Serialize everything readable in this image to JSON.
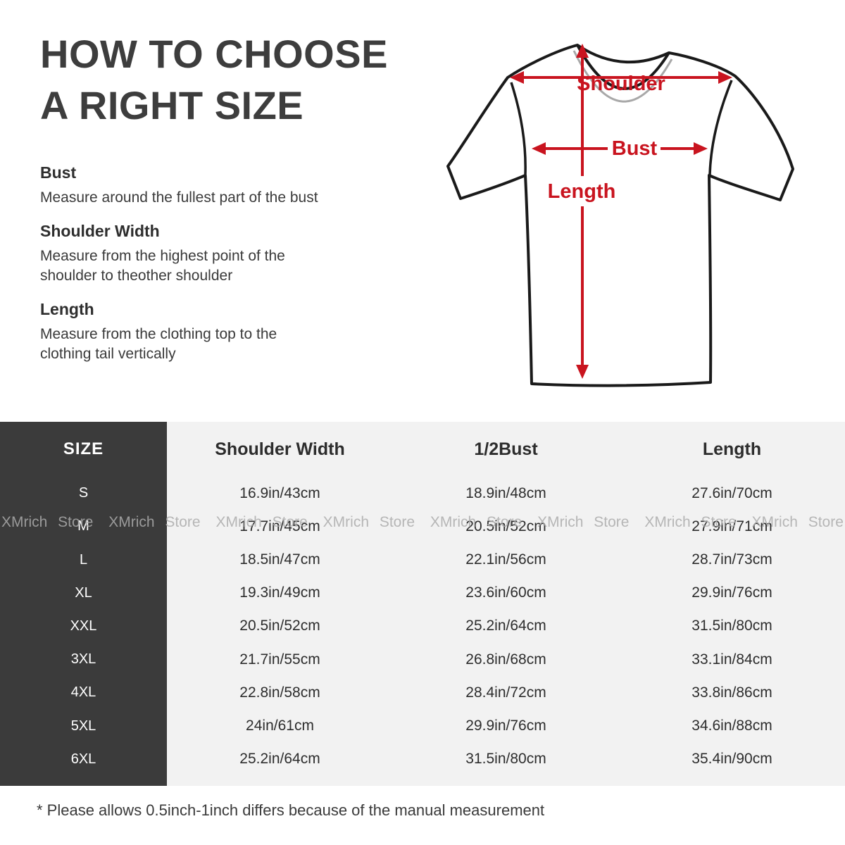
{
  "title": "HOW TO CHOOSE\nA RIGHT SIZE",
  "instructions": [
    {
      "heading": "Bust",
      "body": "Measure around the fullest part of the bust"
    },
    {
      "heading": "Shoulder Width",
      "body": "Measure from the highest point of the\nshoulder to theother shoulder"
    },
    {
      "heading": "Length",
      "body": "Measure from the clothing top to the\nclothing tail vertically"
    }
  ],
  "diagram": {
    "shoulder_label": "Shoulder",
    "bust_label": "Bust",
    "length_label": "Length",
    "arrow_color": "#c9141f",
    "outline_color": "#1a1a1a"
  },
  "size_table": {
    "columns": [
      "SIZE",
      "Shoulder Width",
      "1/2Bust",
      "Length"
    ],
    "rows": [
      {
        "size": "S",
        "shoulder": "16.9in/43cm",
        "bust": "18.9in/48cm",
        "length": "27.6in/70cm"
      },
      {
        "size": "M",
        "shoulder": "17.7in/45cm",
        "bust": "20.5in/52cm",
        "length": "27.9in/71cm"
      },
      {
        "size": "L",
        "shoulder": "18.5in/47cm",
        "bust": "22.1in/56cm",
        "length": "28.7in/73cm"
      },
      {
        "size": "XL",
        "shoulder": "19.3in/49cm",
        "bust": "23.6in/60cm",
        "length": "29.9in/76cm"
      },
      {
        "size": "XXL",
        "shoulder": "20.5in/52cm",
        "bust": "25.2in/64cm",
        "length": "31.5in/80cm"
      },
      {
        "size": "3XL",
        "shoulder": "21.7in/55cm",
        "bust": "26.8in/68cm",
        "length": "33.1in/84cm"
      },
      {
        "size": "4XL",
        "shoulder": "22.8in/58cm",
        "bust": "28.4in/72cm",
        "length": "33.8in/86cm"
      },
      {
        "size": "5XL",
        "shoulder": "24in/61cm",
        "bust": "29.9in/76cm",
        "length": "34.6in/88cm"
      },
      {
        "size": "6XL",
        "shoulder": "25.2in/64cm",
        "bust": "31.5in/80cm",
        "length": "35.4in/90cm"
      }
    ]
  },
  "watermark": {
    "text": "XMrich Store",
    "repeat": 8
  },
  "footnote": "* Please allows 0.5inch-1inch differs because of the  manual measurement",
  "colors": {
    "accent_red": "#c9141f",
    "table_dark_column": "#3b3b3b",
    "table_light_background": "#f2f2f2",
    "title_text": "#3d3d3d"
  }
}
